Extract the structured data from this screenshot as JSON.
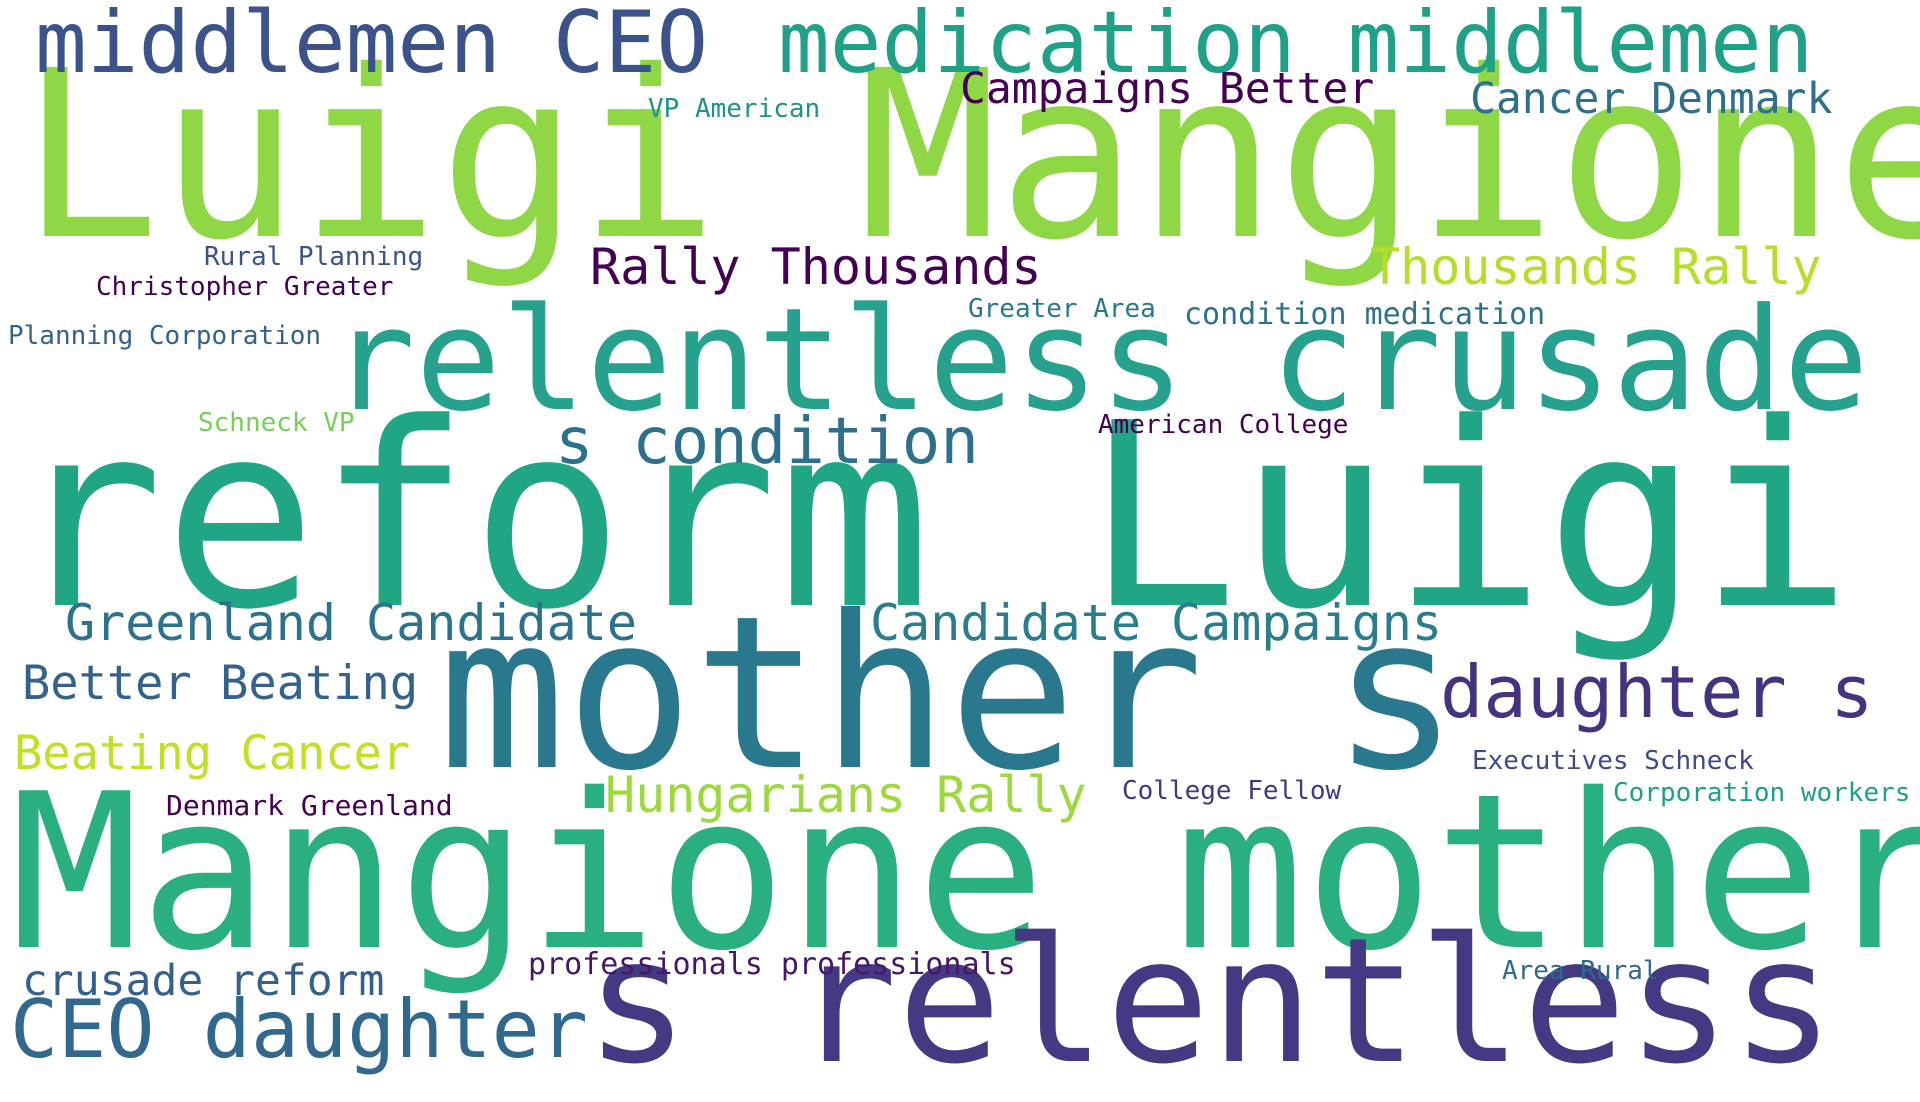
{
  "words": [
    {
      "text": "Luigi Mangione",
      "color": "#8fd744"
    },
    {
      "text": "reform Luigi",
      "color": "#21a685"
    },
    {
      "text": "Mangione mother",
      "color": "#2ab07f"
    },
    {
      "text": "mother s",
      "color": "#2a788e"
    },
    {
      "text": "s relentless",
      "color": "#443983"
    },
    {
      "text": "relentless crusade",
      "color": "#25a18e"
    },
    {
      "text": "middlemen CEO",
      "color": "#3b528b"
    },
    {
      "text": "medication middlemen",
      "color": "#1fa188"
    },
    {
      "text": "daughter s",
      "color": "#46327e"
    },
    {
      "text": "CEO daughter",
      "color": "#31688e"
    },
    {
      "text": "s condition",
      "color": "#2d708e"
    },
    {
      "text": "Rally Thousands",
      "color": "#440154"
    },
    {
      "text": "Thousands Rally",
      "color": "#b5de2b"
    },
    {
      "text": "Greenland Candidate",
      "color": "#2c728e"
    },
    {
      "text": "Candidate Campaigns",
      "color": "#287d8e"
    },
    {
      "text": "Hungarians Rally",
      "color": "#9bd93c"
    },
    {
      "text": "Better Beating",
      "color": "#33638d"
    },
    {
      "text": "Beating Cancer",
      "color": "#c2df23"
    },
    {
      "text": "crusade reform",
      "color": "#355f8d"
    },
    {
      "text": "Campaigns Better",
      "color": "#440154"
    },
    {
      "text": "Cancer Denmark",
      "color": "#2e6f8e"
    },
    {
      "text": "professionals professionals",
      "color": "#481668"
    },
    {
      "text": "VP American",
      "color": "#21918c"
    },
    {
      "text": "Rural Planning",
      "color": "#3b528b"
    },
    {
      "text": "Christopher Greater",
      "color": "#440154"
    },
    {
      "text": "Planning Corporation",
      "color": "#33638d"
    },
    {
      "text": "Greater Area",
      "color": "#2a788e"
    },
    {
      "text": "condition medication",
      "color": "#2c728e"
    },
    {
      "text": "Schneck VP",
      "color": "#75d054"
    },
    {
      "text": "American College",
      "color": "#440154"
    },
    {
      "text": "Executives Schneck",
      "color": "#3e4a89"
    },
    {
      "text": "College Fellow",
      "color": "#453781"
    },
    {
      "text": "Corporation workers",
      "color": "#1f9e89"
    },
    {
      "text": "Denmark Greenland",
      "color": "#440154"
    },
    {
      "text": "Area Rural",
      "color": "#31688e"
    }
  ]
}
